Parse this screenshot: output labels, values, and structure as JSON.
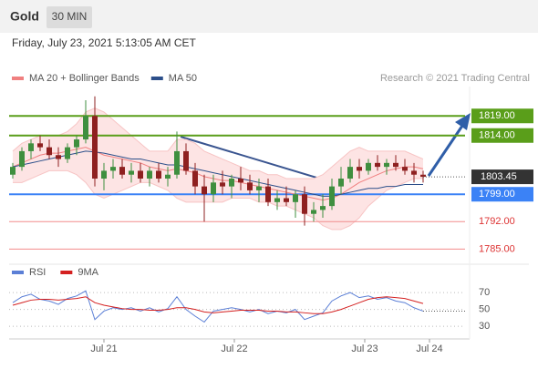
{
  "chart_data": {
    "type": "candlestick",
    "title": "Gold",
    "timeframe": "30 MIN",
    "subtitle": "Friday, July 23, 2021 5:13:05 AM CET",
    "credit": "Research © 2021 Trading Central",
    "x": [
      0,
      1,
      2,
      3,
      4,
      5,
      6,
      7,
      8,
      9,
      10,
      11,
      12,
      13,
      14,
      15,
      16,
      17,
      18,
      19,
      20,
      21,
      22,
      23,
      24,
      25,
      26,
      27,
      28,
      29,
      30,
      31,
      32,
      33,
      34,
      35,
      36,
      37,
      38,
      39,
      40,
      41,
      42,
      43,
      44,
      45
    ],
    "open": [
      1804,
      1806,
      1810,
      1812,
      1811,
      1809,
      1808,
      1811,
      1813,
      1819,
      1803,
      1805,
      1806,
      1804,
      1805,
      1803,
      1805,
      1803,
      1804,
      1810,
      1805,
      1801,
      1799,
      1802,
      1801,
      1803,
      1802,
      1800,
      1801,
      1797,
      1798,
      1797,
      1799,
      1794,
      1795,
      1796,
      1801,
      1803,
      1806,
      1805,
      1807,
      1806,
      1807,
      1806,
      1805,
      1804
    ],
    "high": [
      1807,
      1811,
      1813,
      1814,
      1813,
      1811,
      1812,
      1814,
      1823,
      1824,
      1807,
      1808,
      1808,
      1807,
      1807,
      1806,
      1807,
      1806,
      1815,
      1812,
      1807,
      1804,
      1804,
      1805,
      1804,
      1806,
      1804,
      1803,
      1803,
      1800,
      1801,
      1800,
      1801,
      1797,
      1799,
      1803,
      1806,
      1808,
      1808,
      1808,
      1809,
      1808,
      1809,
      1808,
      1807,
      1805
    ],
    "low": [
      1803,
      1805,
      1808,
      1810,
      1808,
      1806,
      1807,
      1809,
      1812,
      1801,
      1800,
      1803,
      1803,
      1802,
      1802,
      1801,
      1802,
      1801,
      1803,
      1804,
      1799,
      1792,
      1797,
      1799,
      1798,
      1800,
      1799,
      1797,
      1796,
      1795,
      1796,
      1793,
      1791,
      1792,
      1793,
      1795,
      1799,
      1802,
      1803,
      1804,
      1805,
      1804,
      1805,
      1804,
      1802,
      1802
    ],
    "close": [
      1806,
      1810,
      1812,
      1811,
      1809,
      1808,
      1811,
      1813,
      1819,
      1803,
      1805,
      1806,
      1804,
      1805,
      1803,
      1805,
      1803,
      1804,
      1810,
      1805,
      1801,
      1799,
      1802,
      1801,
      1803,
      1802,
      1800,
      1801,
      1797,
      1798,
      1797,
      1799,
      1794,
      1795,
      1796,
      1801,
      1803,
      1806,
      1805,
      1807,
      1806,
      1807,
      1806,
      1805,
      1804,
      1803.45
    ],
    "up_color": "#3f8f3f",
    "down_color": "#8e2020",
    "overlays": [
      {
        "name": "MA 20 + Bollinger Bands",
        "color": "#f08080",
        "values": [
          1806,
          1807,
          1808,
          1809,
          1809.5,
          1809.5,
          1810,
          1810.5,
          1811,
          1810,
          1809,
          1808.5,
          1808,
          1807.5,
          1807,
          1806,
          1805.5,
          1805,
          1805.5,
          1805,
          1804.5,
          1803.5,
          1803,
          1802.5,
          1802.5,
          1802,
          1801.5,
          1801,
          1800.5,
          1800,
          1799.5,
          1799,
          1798.5,
          1798,
          1797.5,
          1798,
          1799,
          1800.5,
          1802,
          1803,
          1804,
          1805,
          1805.5,
          1806,
          1806,
          1805.5
        ],
        "upper": [
          1810,
          1812,
          1813,
          1814,
          1814,
          1814,
          1815,
          1817,
          1820,
          1821,
          1820,
          1818,
          1816,
          1814,
          1812,
          1810,
          1810,
          1810,
          1813,
          1813,
          1812,
          1810,
          1809,
          1808,
          1807,
          1806,
          1805,
          1805,
          1804,
          1804,
          1803,
          1803,
          1803,
          1803,
          1804,
          1806,
          1808,
          1810,
          1811,
          1810,
          1810,
          1810,
          1810,
          1810,
          1809,
          1808
        ],
        "lower": [
          1802,
          1802,
          1803,
          1804,
          1805,
          1805,
          1805,
          1804,
          1802,
          1799,
          1798,
          1799,
          1800,
          1801,
          1802,
          1802,
          1801,
          1800,
          1798,
          1797,
          1797,
          1797,
          1797,
          1797,
          1798,
          1798,
          1798,
          1797,
          1797,
          1796,
          1796,
          1795,
          1794,
          1793,
          1791,
          1790,
          1790,
          1791,
          1793,
          1796,
          1798,
          1800,
          1801,
          1802,
          1803,
          1803
        ]
      },
      {
        "name": "MA 50",
        "color": "#2c4f8a",
        "values": [
          1806,
          1806.5,
          1807,
          1807.5,
          1808,
          1808.5,
          1809,
          1809.5,
          1810,
          1809.8,
          1809.5,
          1809,
          1808.5,
          1808,
          1808,
          1807.5,
          1807,
          1806.5,
          1806.5,
          1806,
          1805.5,
          1805,
          1804.5,
          1804,
          1803.5,
          1803,
          1802.5,
          1802,
          1801.5,
          1801,
          1800.5,
          1800,
          1799.5,
          1799,
          1798.5,
          1798.5,
          1799,
          1799.5,
          1800,
          1800.5,
          1800.5,
          1801,
          1801,
          1801.5,
          1801.5,
          1801.5
        ]
      }
    ],
    "levels": [
      {
        "value": 1819,
        "label": "1819.00",
        "color": "#5a9e1a",
        "style": "box"
      },
      {
        "value": 1814,
        "label": "1814.00",
        "color": "#5a9e1a",
        "style": "box"
      },
      {
        "value": 1799,
        "label": "1799.00",
        "color": "#3b82f6",
        "style": "box"
      },
      {
        "value": 1792,
        "label": "1792.00",
        "color": "#f28b8b",
        "style": "text"
      },
      {
        "value": 1785,
        "label": "1785.00",
        "color": "#f28b8b",
        "style": "text"
      }
    ],
    "last_price": 1803.45,
    "xlim": [
      -0.4,
      49.6
    ],
    "ylim": [
      1783,
      1826.5
    ],
    "xticks": [
      {
        "value": 10,
        "label": "Jul 21"
      },
      {
        "value": 24.3,
        "label": "Jul 22"
      },
      {
        "value": 38.6,
        "label": "Jul 23"
      },
      {
        "value": 45.7,
        "label": "Jul 24"
      }
    ],
    "rsi": {
      "ylim": [
        15,
        82
      ],
      "yticks": [
        30,
        50,
        70
      ],
      "series": [
        {
          "name": "RSI",
          "color": "#5b7fd6",
          "values": [
            58,
            65,
            68,
            62,
            60,
            56,
            63,
            66,
            72,
            38,
            48,
            52,
            50,
            52,
            48,
            52,
            47,
            51,
            65,
            50,
            42,
            35,
            48,
            50,
            52,
            50,
            47,
            50,
            45,
            48,
            46,
            50,
            38,
            42,
            46,
            60,
            66,
            70,
            64,
            66,
            62,
            64,
            60,
            58,
            52,
            48
          ]
        },
        {
          "name": "9MA",
          "color": "#d42020",
          "values": [
            55,
            58,
            61,
            62,
            62,
            61,
            62,
            63,
            65,
            58,
            55,
            53,
            51,
            50,
            50,
            49,
            49,
            50,
            52,
            52,
            50,
            47,
            46,
            47,
            48,
            49,
            49,
            49,
            48,
            48,
            47,
            47,
            46,
            45,
            45,
            47,
            50,
            54,
            58,
            62,
            64,
            65,
            64,
            63,
            60,
            57
          ]
        }
      ]
    }
  }
}
